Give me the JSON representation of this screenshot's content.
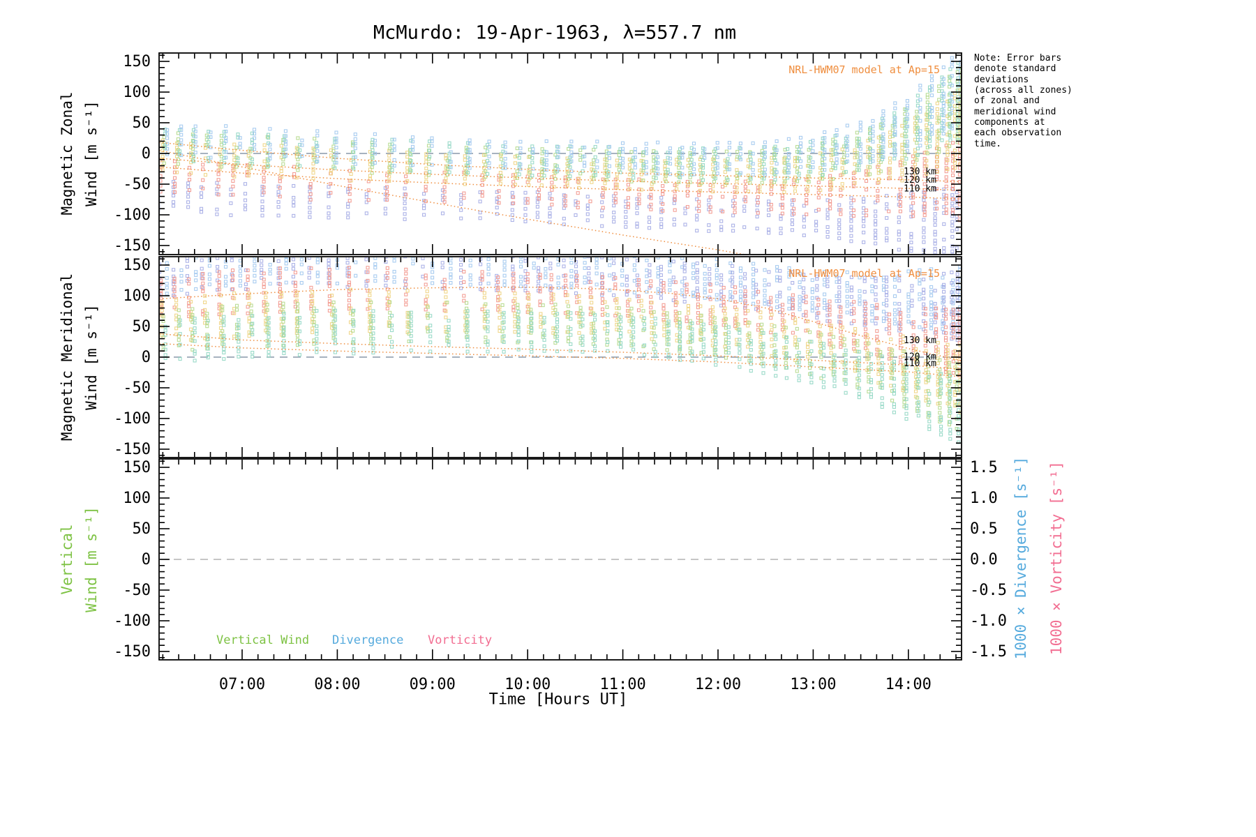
{
  "title": "McMurdo: 19-Apr-1963, λ=557.7 nm",
  "x_axis": {
    "label": "Time [Hours UT]",
    "ticks": [
      "07:00",
      "08:00",
      "09:00",
      "10:00",
      "11:00",
      "12:00",
      "13:00",
      "14:00"
    ]
  },
  "panel_labels": {
    "zonal_line1": "Magnetic Zonal",
    "zonal_line2": "Wind [m s⁻¹]",
    "meridional_line1": "Magnetic Meridional",
    "meridional_line2": "Wind [m s⁻¹]",
    "vertical_line1": "Vertical",
    "vertical_line2": "Wind [m s⁻¹]",
    "divergence_axis": "1000 × Divergence [s⁻¹]",
    "vorticity_axis": "1000 × Vorticity [s⁻¹]"
  },
  "annotations": {
    "model_note": "NRL-HWM07 model at Ap=15",
    "note": "Note: Error bars\ndenote standard\ndeviations\n(across all zones)\nof zonal and\nmeridional wind\ncomponents at\neach observation\ntime."
  },
  "legend": {
    "vertical_wind": "Vertical Wind",
    "divergence": "Divergence",
    "vorticity": "Vorticity"
  },
  "colors": {
    "model_orange": "#ef8e3f",
    "zero_line": "#8899aa",
    "vertical_green": "#7dc243",
    "divergence_blue": "#55aadd",
    "vorticity_pink": "#f26d91",
    "frame": "#000000"
  },
  "chart_data": {
    "type": "scatter",
    "x_range_hours_ut": [
      6.13,
      14.56
    ],
    "y_range_wind_m_per_s": [
      -165,
      165
    ],
    "y_range_divergence_vorticity": [
      -1.5,
      1.5
    ],
    "x_major_hours": [
      7,
      8,
      9,
      10,
      11,
      12,
      13,
      14
    ],
    "x_minor_tick_minutes": 10,
    "wind_tick_values": [
      150,
      100,
      50,
      0,
      -50,
      -100,
      -150
    ],
    "wind_minor_tick_step": 10,
    "dv_tick_values": [
      1.5,
      1.0,
      0.5,
      0.0,
      -0.5,
      -1.0,
      -1.5
    ],
    "bottom_panel_empty": true,
    "vertical_wind_points": [],
    "divergence_points": [],
    "vorticity_points": [],
    "scatter_color_groups": [
      {
        "name": "lavender",
        "color": "#a3aae4",
        "zonal_bias": -0.9,
        "meridional_bias": 0.85
      },
      {
        "name": "salmon",
        "color": "#f2958b",
        "zonal_bias": -0.35,
        "meridional_bias": 0.35
      },
      {
        "name": "yellow",
        "color": "#eed37f",
        "zonal_bias": 0.25,
        "meridional_bias": -0.15
      },
      {
        "name": "green",
        "color": "#b2d98a",
        "zonal_bias": 0.5,
        "meridional_bias": -0.4
      },
      {
        "name": "cyan",
        "color": "#8fd6c3",
        "zonal_bias": 0.6,
        "meridional_bias": -0.6
      },
      {
        "name": "light-blue",
        "color": "#9fc7ee",
        "zonal_bias": 0.75,
        "meridional_bias": 0.95
      }
    ],
    "observation_columns_format": [
      "hour_ut",
      "zonal_mean",
      "zonal_sd",
      "meridional_mean",
      "meridional_sd"
    ],
    "observation_columns": [
      [
        6.17,
        -18,
        55,
        70,
        70
      ],
      [
        6.32,
        -20,
        55,
        72,
        72
      ],
      [
        6.47,
        -22,
        56,
        74,
        74
      ],
      [
        6.62,
        -23,
        55,
        76,
        74
      ],
      [
        6.78,
        -24,
        56,
        78,
        76
      ],
      [
        6.93,
        -25,
        55,
        80,
        76
      ],
      [
        7.08,
        -26,
        55,
        80,
        75
      ],
      [
        7.25,
        -27,
        56,
        82,
        76
      ],
      [
        7.42,
        -28,
        55,
        83,
        75
      ],
      [
        7.58,
        -29,
        55,
        84,
        76
      ],
      [
        7.75,
        -30,
        55,
        85,
        75
      ],
      [
        7.95,
        -31,
        54,
        85,
        74
      ],
      [
        8.15,
        -32,
        54,
        86,
        75
      ],
      [
        8.35,
        -33,
        53,
        86,
        74
      ],
      [
        8.55,
        -34,
        53,
        86,
        73
      ],
      [
        8.75,
        -35,
        52,
        85,
        72
      ],
      [
        8.95,
        -36,
        52,
        85,
        72
      ],
      [
        9.15,
        -37,
        51,
        85,
        71
      ],
      [
        9.35,
        -38,
        51,
        84,
        70
      ],
      [
        9.55,
        -39,
        50,
        84,
        70
      ],
      [
        9.72,
        -40,
        50,
        83,
        69
      ],
      [
        9.88,
        -41,
        50,
        83,
        68
      ],
      [
        10.02,
        -42,
        50,
        82,
        68
      ],
      [
        10.15,
        -42,
        51,
        82,
        67
      ],
      [
        10.28,
        -43,
        51,
        81,
        67
      ],
      [
        10.42,
        -44,
        52,
        80,
        66
      ],
      [
        10.55,
        -45,
        52,
        79,
        66
      ],
      [
        10.68,
        -45,
        52,
        78,
        65
      ],
      [
        10.82,
        -46,
        53,
        77,
        65
      ],
      [
        10.95,
        -47,
        53,
        76,
        65
      ],
      [
        11.08,
        -47,
        53,
        74,
        65
      ],
      [
        11.2,
        -48,
        54,
        73,
        66
      ],
      [
        11.32,
        -48,
        54,
        71,
        66
      ],
      [
        11.45,
        -49,
        54,
        69,
        67
      ],
      [
        11.58,
        -49,
        55,
        67,
        67
      ],
      [
        11.7,
        -50,
        55,
        65,
        68
      ],
      [
        11.82,
        -50,
        55,
        63,
        68
      ],
      [
        11.95,
        -50,
        56,
        61,
        69
      ],
      [
        12.08,
        -51,
        56,
        58,
        69
      ],
      [
        12.2,
        -51,
        57,
        56,
        70
      ],
      [
        12.32,
        -51,
        57,
        53,
        70
      ],
      [
        12.45,
        -51,
        58,
        50,
        71
      ],
      [
        12.58,
        -50,
        59,
        47,
        72
      ],
      [
        12.7,
        -50,
        60,
        44,
        73
      ],
      [
        12.82,
        -49,
        62,
        41,
        74
      ],
      [
        12.95,
        -48,
        64,
        37,
        75
      ],
      [
        13.08,
        -46,
        66,
        33,
        77
      ],
      [
        13.2,
        -44,
        69,
        29,
        79
      ],
      [
        13.32,
        -42,
        72,
        25,
        81
      ],
      [
        13.45,
        -39,
        76,
        21,
        84
      ],
      [
        13.58,
        -36,
        80,
        17,
        87
      ],
      [
        13.7,
        -32,
        85,
        13,
        90
      ],
      [
        13.82,
        -28,
        91,
        8,
        94
      ],
      [
        13.95,
        -23,
        98,
        3,
        98
      ],
      [
        14.08,
        -17,
        106,
        -2,
        103
      ],
      [
        14.2,
        -11,
        114,
        -7,
        107
      ],
      [
        14.32,
        -5,
        122,
        -11,
        111
      ],
      [
        14.42,
        0,
        130,
        -14,
        114
      ],
      [
        14.5,
        3,
        136,
        -16,
        117
      ],
      [
        14.56,
        5,
        140,
        -18,
        119
      ]
    ],
    "model_lines_zonal": [
      {
        "label": "130 km",
        "points": [
          [
            6.13,
            18
          ],
          [
            7,
            5
          ],
          [
            8,
            -8
          ],
          [
            9,
            -18
          ],
          [
            10,
            -26
          ],
          [
            11,
            -32
          ],
          [
            12,
            -36
          ],
          [
            13,
            -40
          ],
          [
            14,
            -43
          ],
          [
            14.56,
            -46
          ]
        ]
      },
      {
        "label": "120 km",
        "points": [
          [
            6.13,
            -8
          ],
          [
            7,
            -18
          ],
          [
            8,
            -27
          ],
          [
            9,
            -34
          ],
          [
            10,
            -40
          ],
          [
            11,
            -45
          ],
          [
            12,
            -49
          ],
          [
            13,
            -53
          ],
          [
            14,
            -57
          ],
          [
            14.56,
            -60
          ]
        ]
      },
      {
        "label": "110 km",
        "points": [
          [
            6.13,
            -22
          ],
          [
            7,
            -32
          ],
          [
            8,
            -41
          ],
          [
            9,
            -48
          ],
          [
            10,
            -54
          ],
          [
            11,
            -59
          ],
          [
            12,
            -63
          ],
          [
            13,
            -67
          ],
          [
            14,
            -71
          ],
          [
            14.56,
            -74
          ]
        ]
      },
      {
        "label": "",
        "points": [
          [
            6.13,
            5
          ],
          [
            7,
            -22
          ],
          [
            8,
            -52
          ],
          [
            9,
            -80
          ],
          [
            10,
            -107
          ],
          [
            11,
            -133
          ],
          [
            12,
            -157
          ],
          [
            12.55,
            -172
          ]
        ]
      }
    ],
    "model_lines_meridional": [
      {
        "label": "130 km",
        "points": [
          [
            6.13,
            95
          ],
          [
            7,
            103
          ],
          [
            8,
            110
          ],
          [
            9,
            113
          ],
          [
            10,
            114
          ],
          [
            10.8,
            111
          ],
          [
            11.5,
            104
          ],
          [
            12,
            95
          ],
          [
            12.5,
            80
          ],
          [
            13,
            58
          ],
          [
            13.5,
            35
          ],
          [
            14,
            14
          ],
          [
            14.56,
            -6
          ]
        ]
      },
      {
        "label": "120 km",
        "points": [
          [
            6.13,
            38
          ],
          [
            7,
            28
          ],
          [
            8,
            22
          ],
          [
            9,
            17
          ],
          [
            10,
            13
          ],
          [
            11,
            8
          ],
          [
            12,
            2
          ],
          [
            13,
            -5
          ],
          [
            14,
            -13
          ],
          [
            14.56,
            -20
          ]
        ]
      },
      {
        "label": "110 km",
        "points": [
          [
            6.13,
            22
          ],
          [
            7,
            15
          ],
          [
            8,
            10
          ],
          [
            9,
            6
          ],
          [
            10,
            2
          ],
          [
            11,
            -2
          ],
          [
            12,
            -8
          ],
          [
            13,
            -16
          ],
          [
            14,
            -24
          ],
          [
            14.56,
            -32
          ]
        ]
      }
    ]
  }
}
